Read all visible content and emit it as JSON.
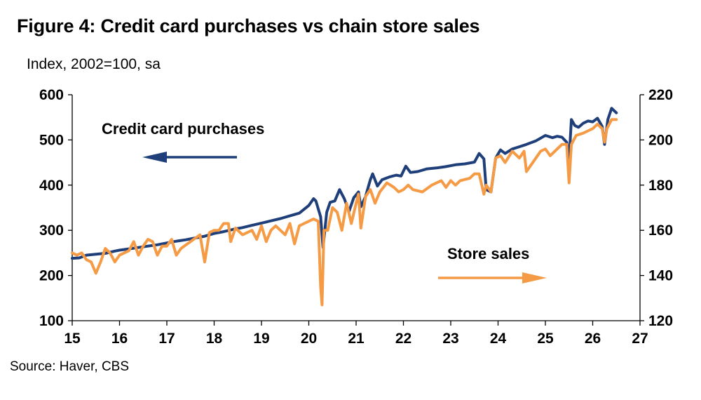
{
  "figure": {
    "title": "Figure 4: Credit card purchases vs chain store sales",
    "subtitle": "Index, 2002=100, sa",
    "source": "Source: Haver, CBS"
  },
  "colors": {
    "credit": "#1f3f7a",
    "store": "#f59a45",
    "axis": "#000000"
  },
  "chart_data": {
    "type": "line",
    "title": "Figure 4: Credit card purchases vs chain store sales",
    "xlabel": "",
    "ylabel": "Index, 2002=100, sa",
    "xlim": [
      15,
      27
    ],
    "x_ticks": [
      "15",
      "16",
      "17",
      "18",
      "19",
      "20",
      "21",
      "22",
      "23",
      "24",
      "25",
      "26",
      "27"
    ],
    "ylim_left": [
      100,
      600
    ],
    "y_ticks_left": [
      "100",
      "200",
      "300",
      "400",
      "500",
      "600"
    ],
    "ylim_right": [
      120,
      220
    ],
    "y_ticks_right": [
      "120",
      "140",
      "160",
      "180",
      "200",
      "220"
    ],
    "grid": false,
    "annotations": [
      {
        "text": "Credit card purchases",
        "arrow": "left",
        "series": "Credit card purchases"
      },
      {
        "text": "Store sales",
        "arrow": "right",
        "series": "Store sales"
      }
    ],
    "series": [
      {
        "name": "Credit card purchases",
        "axis": "left",
        "color": "#1f3f7a",
        "points": [
          [
            15.0,
            238
          ],
          [
            15.15,
            239
          ],
          [
            15.3,
            245
          ],
          [
            15.5,
            247
          ],
          [
            15.7,
            249
          ],
          [
            15.9,
            254
          ],
          [
            16.0,
            256
          ],
          [
            16.2,
            259
          ],
          [
            16.4,
            262
          ],
          [
            16.6,
            265
          ],
          [
            16.8,
            268
          ],
          [
            17.0,
            272
          ],
          [
            17.2,
            276
          ],
          [
            17.4,
            279
          ],
          [
            17.6,
            283
          ],
          [
            17.8,
            287
          ],
          [
            18.0,
            293
          ],
          [
            18.2,
            297
          ],
          [
            18.4,
            302
          ],
          [
            18.6,
            306
          ],
          [
            18.8,
            311
          ],
          [
            19.0,
            316
          ],
          [
            19.2,
            321
          ],
          [
            19.4,
            326
          ],
          [
            19.6,
            332
          ],
          [
            19.8,
            338
          ],
          [
            20.0,
            355
          ],
          [
            20.1,
            370
          ],
          [
            20.15,
            365
          ],
          [
            20.25,
            330
          ],
          [
            20.3,
            262
          ],
          [
            20.38,
            340
          ],
          [
            20.45,
            362
          ],
          [
            20.55,
            365
          ],
          [
            20.65,
            390
          ],
          [
            20.75,
            370
          ],
          [
            20.85,
            342
          ],
          [
            20.95,
            372
          ],
          [
            21.05,
            385
          ],
          [
            21.1,
            352
          ],
          [
            21.2,
            375
          ],
          [
            21.3,
            412
          ],
          [
            21.35,
            425
          ],
          [
            21.45,
            398
          ],
          [
            21.55,
            412
          ],
          [
            21.7,
            418
          ],
          [
            21.85,
            422
          ],
          [
            21.95,
            420
          ],
          [
            22.05,
            442
          ],
          [
            22.15,
            428
          ],
          [
            22.3,
            430
          ],
          [
            22.5,
            436
          ],
          [
            22.7,
            438
          ],
          [
            22.9,
            441
          ],
          [
            23.1,
            445
          ],
          [
            23.3,
            447
          ],
          [
            23.5,
            451
          ],
          [
            23.6,
            470
          ],
          [
            23.7,
            458
          ],
          [
            23.75,
            390
          ],
          [
            23.85,
            385
          ],
          [
            23.95,
            460
          ],
          [
            24.05,
            478
          ],
          [
            24.15,
            470
          ],
          [
            24.3,
            480
          ],
          [
            24.45,
            485
          ],
          [
            24.6,
            490
          ],
          [
            24.8,
            498
          ],
          [
            25.0,
            510
          ],
          [
            25.15,
            505
          ],
          [
            25.25,
            508
          ],
          [
            25.35,
            506
          ],
          [
            25.45,
            495
          ],
          [
            25.5,
            455
          ],
          [
            25.55,
            545
          ],
          [
            25.62,
            532
          ],
          [
            25.7,
            528
          ],
          [
            25.8,
            537
          ],
          [
            25.9,
            542
          ],
          [
            26.0,
            540
          ],
          [
            26.1,
            548
          ],
          [
            26.2,
            530
          ],
          [
            26.25,
            490
          ],
          [
            26.32,
            545
          ],
          [
            26.4,
            570
          ],
          [
            26.5,
            560
          ]
        ]
      },
      {
        "name": "Store sales",
        "axis": "right",
        "color": "#f59a45",
        "points": [
          [
            15.0,
            150
          ],
          [
            15.1,
            149
          ],
          [
            15.2,
            150
          ],
          [
            15.3,
            147
          ],
          [
            15.4,
            146
          ],
          [
            15.5,
            141
          ],
          [
            15.6,
            146
          ],
          [
            15.7,
            152
          ],
          [
            15.8,
            150
          ],
          [
            15.9,
            146
          ],
          [
            16.0,
            149
          ],
          [
            16.2,
            151
          ],
          [
            16.3,
            155
          ],
          [
            16.4,
            149
          ],
          [
            16.5,
            153
          ],
          [
            16.6,
            156
          ],
          [
            16.7,
            155
          ],
          [
            16.8,
            149
          ],
          [
            16.9,
            153
          ],
          [
            17.0,
            153
          ],
          [
            17.1,
            156
          ],
          [
            17.2,
            149
          ],
          [
            17.3,
            152
          ],
          [
            17.5,
            155
          ],
          [
            17.7,
            158
          ],
          [
            17.8,
            146
          ],
          [
            17.9,
            159
          ],
          [
            18.0,
            160
          ],
          [
            18.1,
            160
          ],
          [
            18.2,
            163
          ],
          [
            18.3,
            163
          ],
          [
            18.35,
            155
          ],
          [
            18.45,
            161
          ],
          [
            18.6,
            158
          ],
          [
            18.8,
            160
          ],
          [
            18.9,
            156
          ],
          [
            19.0,
            162
          ],
          [
            19.1,
            155
          ],
          [
            19.2,
            160
          ],
          [
            19.3,
            162
          ],
          [
            19.4,
            160
          ],
          [
            19.5,
            158
          ],
          [
            19.6,
            163
          ],
          [
            19.7,
            154
          ],
          [
            19.8,
            162
          ],
          [
            19.9,
            163
          ],
          [
            20.0,
            164
          ],
          [
            20.1,
            165
          ],
          [
            20.2,
            164
          ],
          [
            20.25,
            135
          ],
          [
            20.28,
            127
          ],
          [
            20.32,
            160
          ],
          [
            20.4,
            160
          ],
          [
            20.5,
            170
          ],
          [
            20.6,
            168
          ],
          [
            20.7,
            160
          ],
          [
            20.8,
            172
          ],
          [
            20.9,
            163
          ],
          [
            21.0,
            172
          ],
          [
            21.05,
            176
          ],
          [
            21.1,
            161
          ],
          [
            21.2,
            175
          ],
          [
            21.3,
            178
          ],
          [
            21.4,
            172
          ],
          [
            21.5,
            177
          ],
          [
            21.65,
            181
          ],
          [
            21.8,
            179
          ],
          [
            21.9,
            177
          ],
          [
            22.0,
            178
          ],
          [
            22.1,
            180
          ],
          [
            22.2,
            178
          ],
          [
            22.4,
            177
          ],
          [
            22.6,
            180
          ],
          [
            22.7,
            181
          ],
          [
            22.8,
            182
          ],
          [
            22.9,
            179
          ],
          [
            23.0,
            182
          ],
          [
            23.1,
            180
          ],
          [
            23.2,
            182
          ],
          [
            23.4,
            183
          ],
          [
            23.5,
            185
          ],
          [
            23.6,
            185
          ],
          [
            23.7,
            176
          ],
          [
            23.75,
            180
          ],
          [
            23.85,
            177
          ],
          [
            23.95,
            192
          ],
          [
            24.05,
            193
          ],
          [
            24.15,
            190
          ],
          [
            24.3,
            195
          ],
          [
            24.45,
            192
          ],
          [
            24.55,
            195
          ],
          [
            24.6,
            186
          ],
          [
            24.8,
            192
          ],
          [
            24.9,
            195
          ],
          [
            25.0,
            196
          ],
          [
            25.1,
            193
          ],
          [
            25.2,
            195
          ],
          [
            25.35,
            198
          ],
          [
            25.45,
            198
          ],
          [
            25.5,
            181
          ],
          [
            25.55,
            198
          ],
          [
            25.65,
            202
          ],
          [
            25.8,
            203
          ],
          [
            25.9,
            204
          ],
          [
            26.0,
            205
          ],
          [
            26.1,
            207
          ],
          [
            26.2,
            205
          ],
          [
            26.25,
            199
          ],
          [
            26.3,
            205
          ],
          [
            26.4,
            209
          ],
          [
            26.5,
            209
          ]
        ]
      }
    ]
  }
}
